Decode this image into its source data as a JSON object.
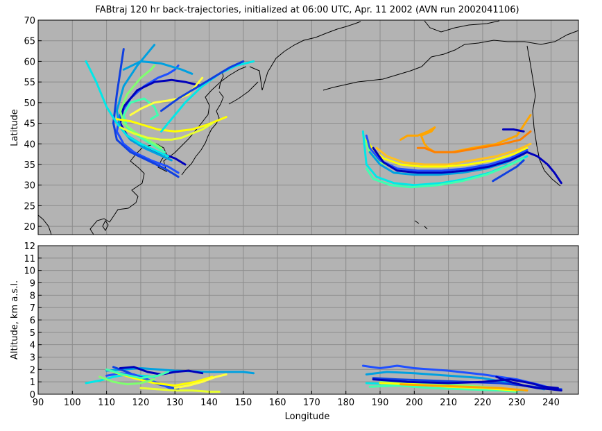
{
  "title": "FABtraj 120 hr back-trajectories, initialized at 06:00 UTC, Apr. 11 2002 (AVN run 2002041106)",
  "colors": {
    "plot_background": "#b3b3b3",
    "grid": "#8c8c8c",
    "coastline": "#000000"
  },
  "chart_data": [
    {
      "type": "line",
      "panel": "map",
      "xlabel": "",
      "ylabel": "Latitude",
      "xlim": [
        90,
        248
      ],
      "ylim": [
        18,
        70
      ],
      "grid": true,
      "xticks": [
        90,
        100,
        110,
        120,
        130,
        140,
        150,
        160,
        170,
        180,
        190,
        200,
        210,
        220,
        230,
        240
      ],
      "yticks": [
        20,
        25,
        30,
        35,
        40,
        45,
        50,
        55,
        60,
        65,
        70
      ],
      "series": [
        {
          "color": "#2050ff",
          "x": [
            131,
            128,
            123,
            118,
            115,
            113,
            114,
            117,
            121,
            125,
            128,
            130,
            131
          ],
          "y": [
            33,
            34.5,
            36,
            38,
            40,
            43,
            47,
            51,
            54,
            56,
            57,
            58,
            59
          ]
        },
        {
          "color": "#0000bb",
          "x": [
            133,
            130,
            125,
            120,
            116,
            114,
            115,
            119,
            124,
            129,
            133,
            138
          ],
          "y": [
            35,
            36.5,
            38,
            40,
            42,
            45,
            49,
            53,
            55,
            55.5,
            55,
            54
          ]
        },
        {
          "color": "#1040e0",
          "x": [
            131,
            127,
            122,
            117,
            113,
            112,
            113,
            115
          ],
          "y": [
            32,
            34,
            36,
            38,
            41,
            45,
            52,
            63
          ]
        },
        {
          "color": "#00a0e0",
          "x": [
            129,
            125,
            121,
            117,
            114,
            113,
            115,
            119,
            123,
            124
          ],
          "y": [
            36,
            37.5,
            39,
            41,
            44,
            48,
            54,
            59,
            63,
            64
          ]
        },
        {
          "color": "#00e8e8",
          "x": [
            128,
            124,
            120,
            116,
            113,
            110,
            107,
            104
          ],
          "y": [
            37,
            38.5,
            40,
            42,
            45,
            49,
            55,
            60
          ]
        },
        {
          "color": "#40ffb0",
          "x": [
            127,
            123,
            119,
            116,
            115,
            117,
            121,
            124,
            125,
            123
          ],
          "y": [
            38,
            40,
            42,
            44,
            47,
            50,
            51,
            49,
            47,
            46
          ]
        },
        {
          "color": "#80ff70",
          "x": [
            126,
            122,
            118,
            115,
            114,
            116,
            120,
            123,
            124
          ],
          "y": [
            39,
            41,
            43,
            45,
            48,
            52,
            56,
            58,
            59
          ]
        },
        {
          "color": "#ffff00",
          "x": [
            113,
            117,
            121,
            125,
            130,
            135,
            139,
            142,
            145
          ],
          "y": [
            46,
            45.5,
            44.5,
            43.5,
            43,
            43.5,
            44.5,
            45.5,
            46.5
          ]
        },
        {
          "color": "#e8ff30",
          "x": [
            114,
            118,
            122,
            126,
            129,
            132,
            135,
            138,
            141
          ],
          "y": [
            44,
            42.5,
            41.5,
            41,
            41,
            41.5,
            42.5,
            43.5,
            45
          ]
        },
        {
          "color": "#ffff40",
          "x": [
            117,
            120,
            124,
            128,
            131,
            134,
            136,
            138
          ],
          "y": [
            47,
            48.5,
            50,
            50.5,
            51,
            52,
            54,
            56
          ]
        },
        {
          "color": "#00e8e8",
          "x": [
            126,
            129,
            133,
            138,
            143,
            148,
            153
          ],
          "y": [
            43,
            46,
            50,
            54,
            57,
            59,
            60
          ]
        },
        {
          "color": "#1040e0",
          "x": [
            126,
            131,
            137,
            142,
            146,
            150
          ],
          "y": [
            48,
            51,
            54,
            56.5,
            58.5,
            60
          ]
        },
        {
          "color": "#00a0e0",
          "x": [
            115,
            120,
            126,
            132,
            135
          ],
          "y": [
            58,
            60,
            59.5,
            58,
            57
          ]
        },
        {
          "color": "#ffa500",
          "x": [
            234,
            230,
            224,
            217,
            211,
            206,
            204,
            203,
            202,
            205,
            206,
            204,
            201,
            198,
            196
          ],
          "y": [
            47,
            42,
            40,
            39,
            38,
            38,
            39,
            40,
            42,
            43,
            44,
            43,
            42,
            42,
            41
          ]
        },
        {
          "color": "#ff8000",
          "x": [
            234,
            231,
            226,
            219,
            212,
            206,
            203,
            201
          ],
          "y": [
            43,
            41,
            40,
            39,
            38,
            38,
            39,
            39
          ]
        },
        {
          "color": "#ffc020",
          "x": [
            234,
            230,
            224,
            217,
            210,
            203,
            197,
            192,
            189
          ],
          "y": [
            40,
            38.5,
            37,
            36,
            35,
            35,
            35.5,
            37,
            39
          ]
        },
        {
          "color": "#ffff00",
          "x": [
            233,
            229,
            223,
            216,
            209,
            202,
            196,
            191,
            188,
            186
          ],
          "y": [
            39,
            37.5,
            36,
            35,
            34.5,
            34.5,
            35,
            36.5,
            38.5,
            41
          ]
        },
        {
          "color": "#80ff70",
          "x": [
            233,
            228,
            222,
            215,
            208,
            201,
            195,
            190,
            187,
            185
          ],
          "y": [
            38,
            36.5,
            35,
            34,
            33.5,
            33.5,
            34,
            35.5,
            38,
            42
          ]
        },
        {
          "color": "#00e8e8",
          "x": [
            233,
            228,
            222,
            215,
            208,
            200,
            194,
            189,
            186,
            185
          ],
          "y": [
            37,
            35,
            33,
            31.5,
            30.5,
            30,
            30.5,
            32,
            35,
            43
          ]
        },
        {
          "color": "#40ffb0",
          "x": [
            232,
            227,
            221,
            214,
            207,
            199,
            193,
            188,
            186
          ],
          "y": [
            36.5,
            34.5,
            32.5,
            31,
            30,
            29.5,
            30,
            31.5,
            34
          ]
        },
        {
          "color": "#00a0e0",
          "x": [
            232,
            227,
            221,
            214,
            207,
            200,
            194,
            190,
            187
          ],
          "y": [
            37.5,
            35.5,
            34,
            33,
            32.5,
            32.5,
            33,
            35,
            38
          ]
        },
        {
          "color": "#2050ff",
          "x": [
            233,
            228,
            222,
            215,
            208,
            201,
            195,
            190,
            187,
            186
          ],
          "y": [
            38.5,
            36.5,
            35,
            34,
            33.5,
            33.5,
            34,
            36,
            39,
            42
          ]
        },
        {
          "color": "#0000bb",
          "x": [
            233,
            228,
            222,
            215,
            208,
            201,
            195,
            191,
            188
          ],
          "y": [
            38,
            36,
            34.5,
            33.5,
            33,
            33,
            33.5,
            35.5,
            39
          ]
        },
        {
          "color": "#0000bb",
          "x": [
            233,
            236,
            239,
            241,
            243
          ],
          "y": [
            38,
            37,
            35,
            33,
            30.5
          ]
        },
        {
          "color": "#1040e0",
          "x": [
            232,
            230,
            227,
            223
          ],
          "y": [
            36,
            34.5,
            33,
            31
          ]
        },
        {
          "color": "#0000bb",
          "x": [
            226,
            229,
            232
          ],
          "y": [
            43.5,
            43.5,
            43
          ]
        }
      ]
    },
    {
      "type": "line",
      "panel": "altitude",
      "xlabel": "Longitude",
      "ylabel": "Altitude, km a.s.l.",
      "xlim": [
        90,
        248
      ],
      "ylim": [
        0,
        12
      ],
      "grid": true,
      "xticks": [
        90,
        100,
        110,
        120,
        130,
        140,
        150,
        160,
        170,
        180,
        190,
        200,
        210,
        220,
        230,
        240
      ],
      "yticks": [
        0,
        1,
        2,
        3,
        4,
        5,
        6,
        7,
        8,
        9,
        10,
        11,
        12
      ],
      "series": [
        {
          "color": "#00a0e0",
          "x": [
            110,
            115,
            120,
            125,
            130,
            140,
            150,
            153
          ],
          "y": [
            1.9,
            2.0,
            2.1,
            2.0,
            1.9,
            1.8,
            1.8,
            1.7
          ]
        },
        {
          "color": "#00e8e8",
          "x": [
            104,
            108,
            112,
            116,
            120,
            124
          ],
          "y": [
            0.9,
            1.1,
            1.4,
            1.6,
            1.5,
            1.4
          ]
        },
        {
          "color": "#1040e0",
          "x": [
            112,
            116,
            120,
            124,
            128,
            131
          ],
          "y": [
            2.2,
            1.8,
            1.3,
            0.9,
            0.6,
            0.4
          ]
        },
        {
          "color": "#0000bb",
          "x": [
            114,
            118,
            122,
            126,
            130,
            134,
            138
          ],
          "y": [
            2.1,
            2.2,
            1.8,
            1.6,
            1.8,
            1.9,
            1.7
          ]
        },
        {
          "color": "#2050ff",
          "x": [
            110,
            114,
            118,
            122,
            126,
            130
          ],
          "y": [
            1.5,
            1.7,
            1.6,
            1.2,
            0.8,
            0.3
          ]
        },
        {
          "color": "#ffff00",
          "x": [
            112,
            118,
            124,
            130,
            136,
            141
          ],
          "y": [
            1.8,
            1.3,
            0.9,
            0.7,
            1.0,
            1.4
          ]
        },
        {
          "color": "#ffff40",
          "x": [
            130,
            134,
            138,
            142,
            145
          ],
          "y": [
            0.5,
            0.7,
            1.0,
            1.4,
            1.6
          ]
        },
        {
          "color": "#e8ff30",
          "x": [
            120,
            125,
            130,
            135,
            140,
            143
          ],
          "y": [
            0.5,
            0.4,
            0.3,
            0.3,
            0.2,
            0.2
          ]
        },
        {
          "color": "#40ffb0",
          "x": [
            110,
            115,
            120,
            125,
            128
          ],
          "y": [
            2.0,
            1.6,
            1.3,
            1.5,
            1.8
          ]
        },
        {
          "color": "#80ff70",
          "x": [
            108,
            112,
            116,
            120,
            124
          ],
          "y": [
            1.4,
            1.0,
            0.8,
            0.9,
            1.2
          ]
        },
        {
          "color": "#2050ff",
          "x": [
            185,
            190,
            195,
            200,
            210,
            220,
            230,
            236,
            240
          ],
          "y": [
            2.3,
            2.1,
            2.3,
            2.1,
            1.9,
            1.6,
            1.2,
            0.8,
            0.5
          ]
        },
        {
          "color": "#00a0e0",
          "x": [
            186,
            192,
            200,
            210,
            220,
            230,
            238
          ],
          "y": [
            1.6,
            1.8,
            1.7,
            1.5,
            1.3,
            0.8,
            0.4
          ]
        },
        {
          "color": "#00e8e8",
          "x": [
            186,
            195,
            205,
            215,
            225,
            232
          ],
          "y": [
            0.9,
            0.8,
            0.7,
            0.5,
            0.4,
            0.3
          ]
        },
        {
          "color": "#40ffb0",
          "x": [
            187,
            195,
            205,
            215,
            225,
            230
          ],
          "y": [
            0.6,
            0.7,
            0.5,
            0.4,
            0.3,
            0.2
          ]
        },
        {
          "color": "#80ff70",
          "x": [
            190,
            200,
            210,
            220,
            228
          ],
          "y": [
            1.1,
            0.9,
            0.8,
            0.6,
            0.4
          ]
        },
        {
          "color": "#ffff00",
          "x": [
            190,
            200,
            210,
            220,
            230
          ],
          "y": [
            0.9,
            0.8,
            0.6,
            0.5,
            0.3
          ]
        },
        {
          "color": "#ffa500",
          "x": [
            196,
            205,
            215,
            225,
            233
          ],
          "y": [
            0.8,
            0.7,
            0.6,
            0.5,
            0.3
          ]
        },
        {
          "color": "#1040e0",
          "x": [
            188,
            195,
            205,
            215,
            225,
            232,
            238,
            243
          ],
          "y": [
            1.3,
            1.2,
            1.1,
            1.0,
            0.9,
            0.7,
            0.5,
            0.4
          ]
        },
        {
          "color": "#0000bb",
          "x": [
            188,
            198,
            210,
            220,
            228,
            234,
            238,
            242
          ],
          "y": [
            1.2,
            1.0,
            0.9,
            1.0,
            1.2,
            0.9,
            0.6,
            0.5
          ]
        },
        {
          "color": "#0000bb",
          "x": [
            224,
            228,
            232,
            236,
            240,
            243
          ],
          "y": [
            1.4,
            1.0,
            0.7,
            0.5,
            0.4,
            0.3
          ]
        }
      ]
    }
  ]
}
